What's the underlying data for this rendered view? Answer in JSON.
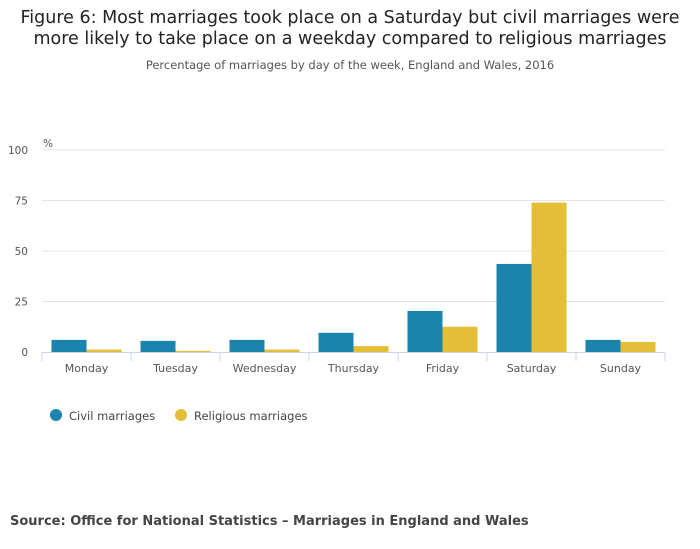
{
  "chart_data": {
    "type": "bar",
    "title": "Figure 6: Most marriages took place on a Saturday but civil marriages were more likely to take place on a weekday compared to religious marriages",
    "subtitle": "Percentage of marriages by day of the week, England and Wales, 2016",
    "ylabel": "%",
    "ylim": [
      0,
      100
    ],
    "yticks": [
      0,
      25,
      50,
      75,
      100
    ],
    "grid": true,
    "legend": "bottom-left",
    "categories": [
      "Monday",
      "Tuesday",
      "Wednesday",
      "Thursday",
      "Friday",
      "Saturday",
      "Sunday"
    ],
    "series": [
      {
        "name": "Civil marriages",
        "color": "#1a84ac",
        "values": [
          6.0,
          5.5,
          6.0,
          9.5,
          20.3,
          43.6,
          6.0
        ]
      },
      {
        "name": "Religious marriages",
        "color": "#e3be36",
        "values": [
          1.2,
          0.6,
          1.2,
          2.9,
          12.5,
          74.0,
          5.0
        ]
      }
    ]
  },
  "source": "Source: Office for National Statistics – Marriages in England and Wales"
}
